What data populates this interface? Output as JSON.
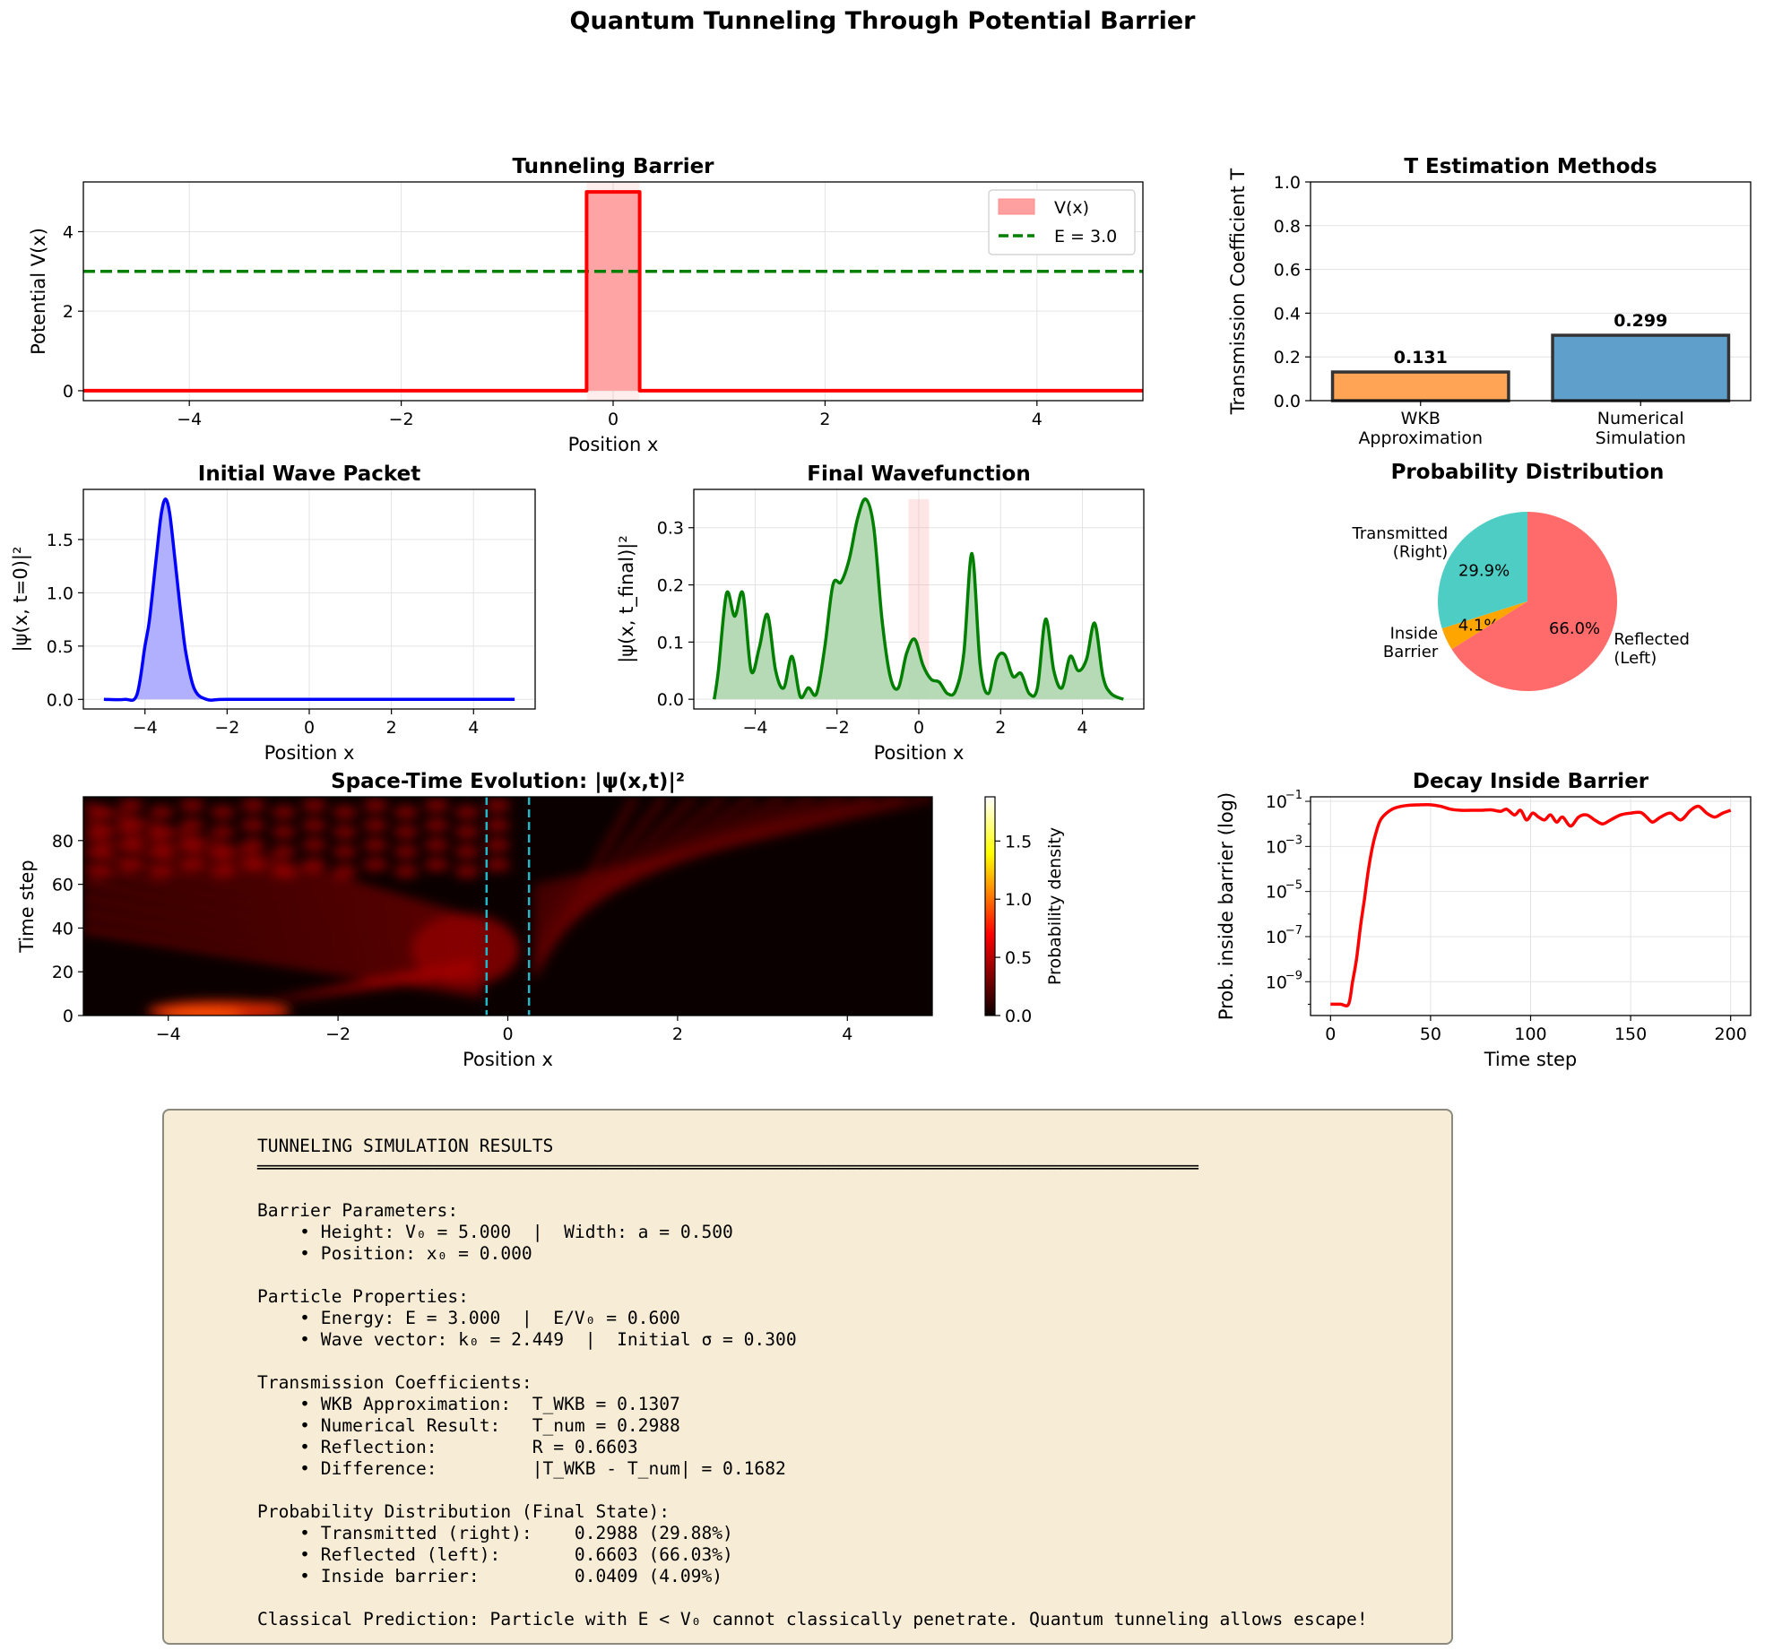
{
  "figure": {
    "suptitle": "Quantum Tunneling Through Potential Barrier"
  },
  "chart_data": [
    {
      "id": "barrier",
      "type": "line",
      "title": "Tunneling Barrier",
      "xlabel": "Position x",
      "ylabel": "Potential V(x)",
      "xlim": [
        -5,
        5
      ],
      "ylim": [
        -0.25,
        5.25
      ],
      "xticks": [
        -4,
        -2,
        0,
        2,
        4
      ],
      "yticks": [
        0,
        2,
        4
      ],
      "grid": true,
      "legend": {
        "position": "top-right",
        "entries": [
          "V(x)",
          "E = 3.0"
        ]
      },
      "series": [
        {
          "name": "V(x)",
          "color": "#ff0000",
          "fill": "#ffa0a0",
          "x": [
            -5,
            -0.25,
            -0.25,
            0.25,
            0.25,
            5
          ],
          "y": [
            0,
            0,
            5,
            5,
            0,
            0
          ]
        },
        {
          "name": "E = 3.0",
          "color": "#007f00",
          "dashed": true,
          "x": [
            -5,
            5
          ],
          "y": [
            3,
            3
          ]
        }
      ],
      "shaded_region": {
        "x": [
          -0.25,
          0.25
        ]
      }
    },
    {
      "id": "tmethods",
      "type": "bar",
      "title": "T Estimation Methods",
      "ylabel": "Transmission Coefficient T",
      "categories": [
        "WKB\nApproximation",
        "Numerical\nSimulation"
      ],
      "values": [
        0.131,
        0.299
      ],
      "data_labels": [
        "0.131",
        "0.299"
      ],
      "colors": [
        "#ffa454",
        "#5e9fcb"
      ],
      "ylim": [
        0,
        1.0
      ],
      "yticks": [
        0.0,
        0.2,
        0.4,
        0.6,
        0.8,
        1.0
      ],
      "grid": true
    },
    {
      "id": "initial",
      "type": "area",
      "title": "Initial Wave Packet",
      "xlabel": "Position x",
      "ylabel": "|ψ(x, t=0)|²",
      "xlim": [
        -5.5,
        5.5
      ],
      "ylim": [
        -0.09,
        1.97
      ],
      "xticks": [
        -4,
        -2,
        0,
        2,
        4
      ],
      "yticks": [
        0.0,
        0.5,
        1.0,
        1.5
      ],
      "grid": true,
      "color": "#0000ff",
      "fill": "#b0b0ff",
      "x": [
        -5.0,
        -4.5,
        -4.2,
        -4.0,
        -3.9,
        -3.8,
        -3.7,
        -3.6,
        -3.5,
        -3.4,
        -3.3,
        -3.2,
        -3.1,
        -3.0,
        -2.8,
        -2.5,
        -2.0,
        0.0,
        2.0,
        5.0
      ],
      "y": [
        0.0,
        0.0,
        0.04,
        0.5,
        0.72,
        1.06,
        1.42,
        1.75,
        1.88,
        1.75,
        1.42,
        1.06,
        0.72,
        0.43,
        0.1,
        0.0,
        0.0,
        0.0,
        0.0,
        0.0
      ]
    },
    {
      "id": "final",
      "type": "area",
      "title": "Final Wavefunction",
      "xlabel": "Position x",
      "ylabel": "|ψ(x, t_final)|²",
      "xlim": [
        -5.5,
        5.5
      ],
      "ylim": [
        -0.017,
        0.367
      ],
      "xticks": [
        -4,
        -2,
        0,
        2,
        4
      ],
      "yticks": [
        0.0,
        0.1,
        0.2,
        0.3
      ],
      "grid": true,
      "color": "#007f00",
      "fill": "#b2d8b2",
      "shaded_region": {
        "x": [
          -0.25,
          0.25
        ],
        "ymax": 0.35
      },
      "x": [
        -5.0,
        -4.9,
        -4.7,
        -4.5,
        -4.3,
        -4.1,
        -3.9,
        -3.7,
        -3.5,
        -3.3,
        -3.1,
        -2.9,
        -2.7,
        -2.5,
        -2.3,
        -2.1,
        -1.9,
        -1.7,
        -1.5,
        -1.3,
        -1.1,
        -0.9,
        -0.7,
        -0.5,
        -0.3,
        -0.1,
        0.1,
        0.3,
        0.5,
        0.7,
        0.9,
        1.1,
        1.3,
        1.5,
        1.7,
        1.9,
        2.1,
        2.3,
        2.5,
        2.7,
        2.9,
        3.1,
        3.3,
        3.5,
        3.7,
        3.9,
        4.1,
        4.3,
        4.5,
        4.7,
        5.0
      ],
      "y": [
        0.0,
        0.05,
        0.185,
        0.145,
        0.185,
        0.05,
        0.09,
        0.148,
        0.05,
        0.02,
        0.075,
        0.005,
        0.02,
        0.01,
        0.09,
        0.2,
        0.205,
        0.245,
        0.315,
        0.35,
        0.3,
        0.14,
        0.04,
        0.02,
        0.08,
        0.105,
        0.06,
        0.035,
        0.03,
        0.01,
        0.015,
        0.08,
        0.255,
        0.06,
        0.01,
        0.07,
        0.078,
        0.04,
        0.045,
        0.01,
        0.02,
        0.14,
        0.05,
        0.02,
        0.075,
        0.05,
        0.07,
        0.133,
        0.04,
        0.01,
        0.0
      ]
    },
    {
      "id": "probdist",
      "type": "pie",
      "title": "Probability Distribution",
      "labels": [
        "Transmitted\n(Right)",
        "Inside\nBarrier",
        "Reflected\n(Left)"
      ],
      "values": [
        29.88,
        4.09,
        66.03
      ],
      "pct_labels": [
        "29.9%",
        "4.1%",
        "66.0%"
      ],
      "colors": [
        "#4ecdc4",
        "#ffa500",
        "#ff6b6b"
      ]
    },
    {
      "id": "spacetime",
      "type": "heatmap",
      "title": "Space-Time Evolution: |ψ(x,t)|²",
      "xlabel": "Position x",
      "ylabel": "Time step",
      "xlim": [
        -5,
        5
      ],
      "ylim": [
        0,
        100
      ],
      "xticks": [
        -4,
        -2,
        0,
        2,
        4
      ],
      "yticks": [
        0,
        20,
        40,
        60,
        80
      ],
      "colormap": "hot",
      "colorbar": {
        "label": "Probability density",
        "range": [
          0,
          1.88
        ],
        "ticks": [
          0.0,
          0.5,
          1.0,
          1.5
        ]
      },
      "barrier_lines_x": [
        -0.25,
        0.25
      ]
    },
    {
      "id": "decay",
      "type": "line",
      "title": "Decay Inside Barrier",
      "xlabel": "Time step",
      "ylabel": "Prob. inside barrier (log)",
      "log_y": true,
      "xlim": [
        -10,
        210
      ],
      "ylim_exp": [
        -10.5,
        -0.8
      ],
      "xticks": [
        0,
        50,
        100,
        150,
        200
      ],
      "yticks_exp": [
        -9,
        -7,
        -5,
        -3,
        -1
      ],
      "grid": true,
      "color": "#ff0000",
      "x": [
        0,
        5,
        9,
        11,
        13,
        15,
        17,
        19,
        21,
        23,
        25,
        28,
        32,
        38,
        45,
        50,
        55,
        60,
        65,
        70,
        75,
        80,
        85,
        88,
        92,
        95,
        98,
        101,
        104,
        107,
        110,
        113,
        116,
        120,
        124,
        128,
        132,
        136,
        140,
        145,
        150,
        155,
        158,
        161,
        165,
        170,
        175,
        180,
        184,
        188,
        192,
        196,
        200
      ],
      "y": [
        1e-10,
        1e-10,
        1e-10,
        1e-09,
        1e-08,
        3e-07,
        5e-06,
        0.0001,
        0.001,
        0.005,
        0.015,
        0.03,
        0.05,
        0.065,
        0.07,
        0.07,
        0.06,
        0.045,
        0.04,
        0.04,
        0.04,
        0.042,
        0.036,
        0.045,
        0.025,
        0.04,
        0.015,
        0.03,
        0.02,
        0.015,
        0.025,
        0.012,
        0.02,
        0.008,
        0.02,
        0.025,
        0.015,
        0.01,
        0.015,
        0.025,
        0.03,
        0.032,
        0.02,
        0.012,
        0.02,
        0.03,
        0.015,
        0.04,
        0.06,
        0.03,
        0.02,
        0.03,
        0.04
      ]
    }
  ],
  "results_box": {
    "lines": [
      "TUNNELING SIMULATION RESULTS",
      "═════════════════════════════════════════════════════════════════════════════════════════",
      "",
      "Barrier Parameters:",
      "    • Height: V₀ = 5.000  |  Width: a = 0.500",
      "    • Position: x₀ = 0.000",
      "",
      "Particle Properties:",
      "    • Energy: E = 3.000  |  E/V₀ = 0.600",
      "    • Wave vector: k₀ = 2.449  |  Initial σ = 0.300",
      "",
      "Transmission Coefficients:",
      "    • WKB Approximation:  T_WKB = 0.1307",
      "    • Numerical Result:   T_num = 0.2988",
      "    • Reflection:         R = 0.6603",
      "    • Difference:         |T_WKB - T_num| = 0.1682",
      "",
      "Probability Distribution (Final State):",
      "    • Transmitted (right):    0.2988 (29.88%)",
      "    • Reflected (left):       0.6603 (66.03%)",
      "    • Inside barrier:         0.0409 (4.09%)",
      "",
      "Classical Prediction: Particle with E < V₀ cannot classically penetrate. Quantum tunneling allows escape!"
    ]
  }
}
